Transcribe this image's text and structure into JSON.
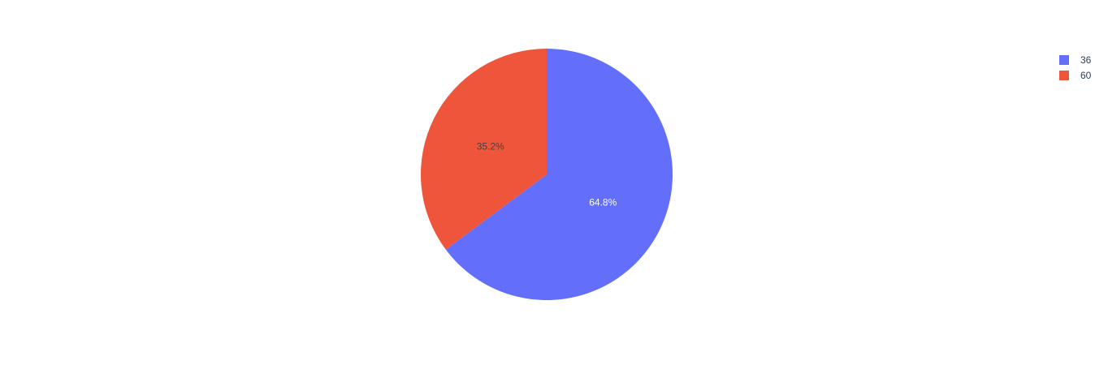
{
  "chart_data": {
    "type": "pie",
    "labels": [
      "36",
      "60"
    ],
    "values": [
      64.8,
      35.2
    ],
    "text_labels": [
      "64.8%",
      "35.2%"
    ],
    "colors": [
      "#636efa",
      "#ef553b"
    ],
    "label_colors": [
      "#ffffff",
      "#444444"
    ],
    "start_angle_deg": 90,
    "direction": "clockwise",
    "legend_position": "top-right"
  }
}
